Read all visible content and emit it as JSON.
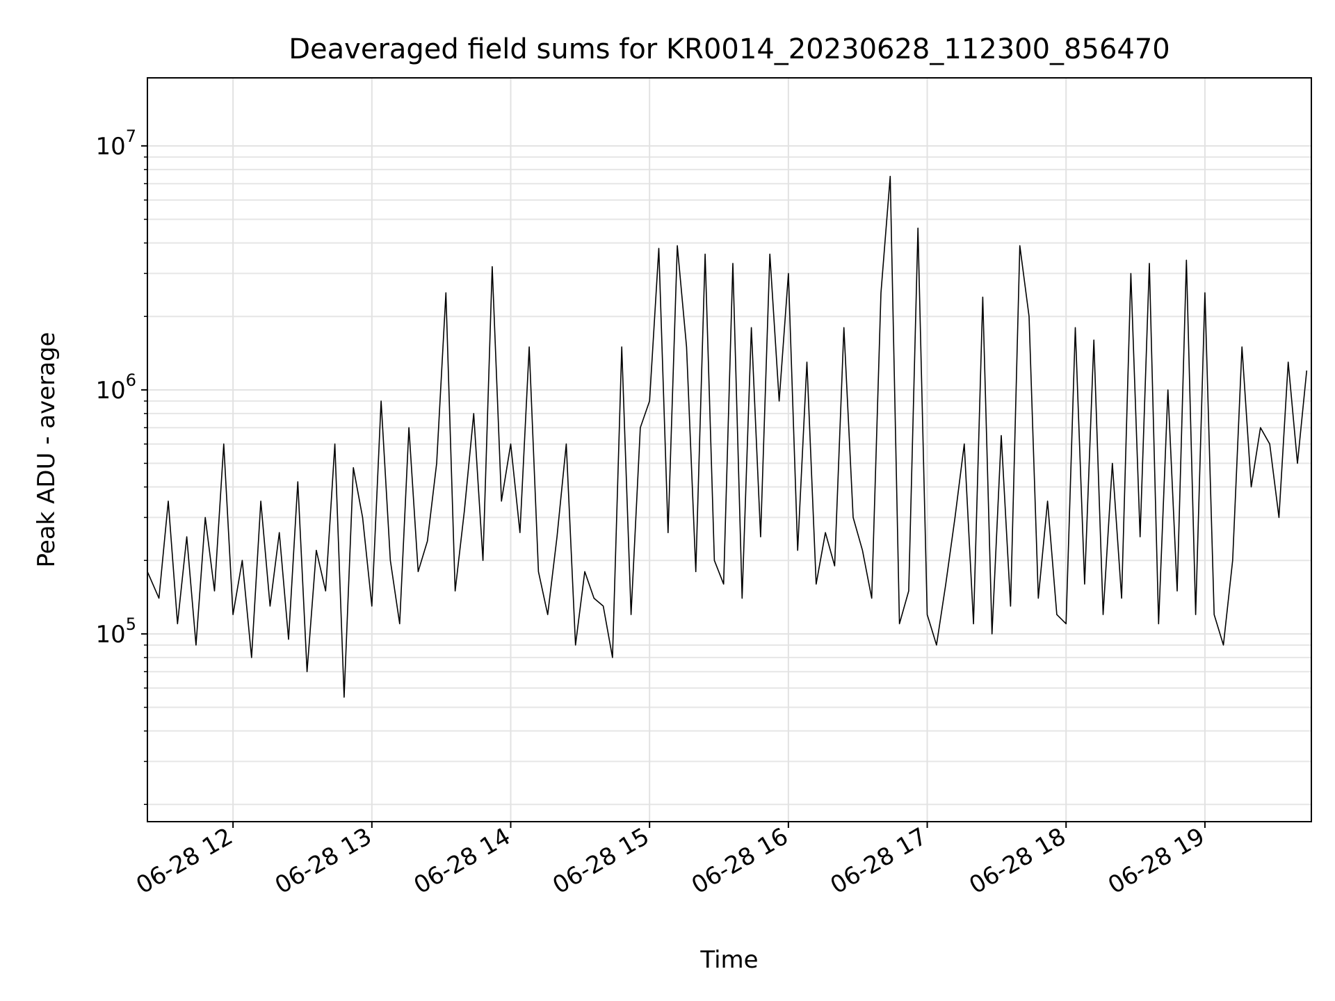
{
  "chart_data": {
    "type": "line",
    "title": "Deaveraged field sums for KR0014_20230628_112300_856470",
    "xlabel": "Time",
    "ylabel": "Peak ADU - average",
    "yscale": "log",
    "ylim": [
      17000,
      19000000
    ],
    "xlim": [
      "2023-06-28 11:23",
      "2023-06-28 19:46"
    ],
    "grid": true,
    "line_color": "#000000",
    "x_ticks": [
      {
        "value": "2023-06-28 12:00",
        "label": "06-28 12"
      },
      {
        "value": "2023-06-28 13:00",
        "label": "06-28 13"
      },
      {
        "value": "2023-06-28 14:00",
        "label": "06-28 14"
      },
      {
        "value": "2023-06-28 15:00",
        "label": "06-28 15"
      },
      {
        "value": "2023-06-28 16:00",
        "label": "06-28 16"
      },
      {
        "value": "2023-06-28 17:00",
        "label": "06-28 17"
      },
      {
        "value": "2023-06-28 18:00",
        "label": "06-28 18"
      },
      {
        "value": "2023-06-28 19:00",
        "label": "06-28 19"
      }
    ],
    "y_ticks": [
      {
        "value": 100000,
        "base": "10",
        "exp": "5"
      },
      {
        "value": 1000000,
        "base": "10",
        "exp": "6"
      },
      {
        "value": 10000000,
        "base": "10",
        "exp": "7"
      }
    ],
    "series": [
      {
        "x": [
          "2023-06-28 11:23",
          "2023-06-28 11:28",
          "2023-06-28 11:32",
          "2023-06-28 11:36",
          "2023-06-28 11:40",
          "2023-06-28 11:44",
          "2023-06-28 11:48",
          "2023-06-28 11:52",
          "2023-06-28 11:56",
          "2023-06-28 12:00",
          "2023-06-28 12:04",
          "2023-06-28 12:08",
          "2023-06-28 12:12",
          "2023-06-28 12:16",
          "2023-06-28 12:20",
          "2023-06-28 12:24",
          "2023-06-28 12:28",
          "2023-06-28 12:32",
          "2023-06-28 12:36",
          "2023-06-28 12:40",
          "2023-06-28 12:44",
          "2023-06-28 12:48",
          "2023-06-28 12:52",
          "2023-06-28 12:56",
          "2023-06-28 13:00",
          "2023-06-28 13:04",
          "2023-06-28 13:08",
          "2023-06-28 13:12",
          "2023-06-28 13:16",
          "2023-06-28 13:20",
          "2023-06-28 13:24",
          "2023-06-28 13:28",
          "2023-06-28 13:32",
          "2023-06-28 13:36",
          "2023-06-28 13:40",
          "2023-06-28 13:44",
          "2023-06-28 13:48",
          "2023-06-28 13:52",
          "2023-06-28 13:56",
          "2023-06-28 14:00",
          "2023-06-28 14:04",
          "2023-06-28 14:08",
          "2023-06-28 14:12",
          "2023-06-28 14:16",
          "2023-06-28 14:20",
          "2023-06-28 14:24",
          "2023-06-28 14:28",
          "2023-06-28 14:32",
          "2023-06-28 14:36",
          "2023-06-28 14:40",
          "2023-06-28 14:44",
          "2023-06-28 14:48",
          "2023-06-28 14:52",
          "2023-06-28 14:56",
          "2023-06-28 15:00",
          "2023-06-28 15:04",
          "2023-06-28 15:08",
          "2023-06-28 15:12",
          "2023-06-28 15:16",
          "2023-06-28 15:20",
          "2023-06-28 15:24",
          "2023-06-28 15:28",
          "2023-06-28 15:32",
          "2023-06-28 15:36",
          "2023-06-28 15:40",
          "2023-06-28 15:44",
          "2023-06-28 15:48",
          "2023-06-28 15:52",
          "2023-06-28 15:56",
          "2023-06-28 16:00",
          "2023-06-28 16:04",
          "2023-06-28 16:08",
          "2023-06-28 16:12",
          "2023-06-28 16:16",
          "2023-06-28 16:20",
          "2023-06-28 16:24",
          "2023-06-28 16:28",
          "2023-06-28 16:32",
          "2023-06-28 16:36",
          "2023-06-28 16:40",
          "2023-06-28 16:44",
          "2023-06-28 16:48",
          "2023-06-28 16:52",
          "2023-06-28 16:56",
          "2023-06-28 17:00",
          "2023-06-28 17:04",
          "2023-06-28 17:08",
          "2023-06-28 17:12",
          "2023-06-28 17:16",
          "2023-06-28 17:20",
          "2023-06-28 17:24",
          "2023-06-28 17:28",
          "2023-06-28 17:32",
          "2023-06-28 17:36",
          "2023-06-28 17:40",
          "2023-06-28 17:44",
          "2023-06-28 17:48",
          "2023-06-28 17:52",
          "2023-06-28 17:56",
          "2023-06-28 18:00",
          "2023-06-28 18:04",
          "2023-06-28 18:08",
          "2023-06-28 18:12",
          "2023-06-28 18:16",
          "2023-06-28 18:20",
          "2023-06-28 18:24",
          "2023-06-28 18:28",
          "2023-06-28 18:32",
          "2023-06-28 18:36",
          "2023-06-28 18:40",
          "2023-06-28 18:44",
          "2023-06-28 18:48",
          "2023-06-28 18:52",
          "2023-06-28 18:56",
          "2023-06-28 19:00",
          "2023-06-28 19:04",
          "2023-06-28 19:08",
          "2023-06-28 19:12",
          "2023-06-28 19:16",
          "2023-06-28 19:20",
          "2023-06-28 19:24",
          "2023-06-28 19:28",
          "2023-06-28 19:32",
          "2023-06-28 19:36",
          "2023-06-28 19:40",
          "2023-06-28 19:44"
        ],
        "y": [
          180000,
          140000,
          350000,
          110000,
          250000,
          90000,
          300000,
          150000,
          600000,
          120000,
          200000,
          80000,
          350000,
          130000,
          260000,
          95000,
          420000,
          70000,
          220000,
          150000,
          600000,
          55000,
          480000,
          300000,
          130000,
          900000,
          200000,
          110000,
          700000,
          180000,
          240000,
          500000,
          2500000,
          150000,
          320000,
          800000,
          200000,
          3200000,
          350000,
          600000,
          260000,
          1500000,
          180000,
          120000,
          250000,
          600000,
          90000,
          180000,
          140000,
          130000,
          80000,
          1500000,
          120000,
          700000,
          900000,
          3800000,
          260000,
          3900000,
          1500000,
          180000,
          3600000,
          200000,
          160000,
          3300000,
          140000,
          1800000,
          250000,
          3600000,
          900000,
          3000000,
          220000,
          1300000,
          160000,
          260000,
          190000,
          1800000,
          300000,
          220000,
          140000,
          2500000,
          7500000,
          110000,
          150000,
          4600000,
          120000,
          90000,
          160000,
          300000,
          600000,
          110000,
          2400000,
          100000,
          650000,
          130000,
          3900000,
          2000000,
          140000,
          350000,
          120000,
          110000,
          1800000,
          160000,
          1600000,
          120000,
          500000,
          140000,
          3000000,
          250000,
          3300000,
          110000,
          1000000,
          150000,
          3400000,
          120000,
          2500000,
          120000,
          90000,
          200000,
          1500000,
          400000,
          700000,
          600000,
          300000,
          1300000,
          500000,
          1200000
        ],
        "color": "#000000"
      }
    ]
  }
}
